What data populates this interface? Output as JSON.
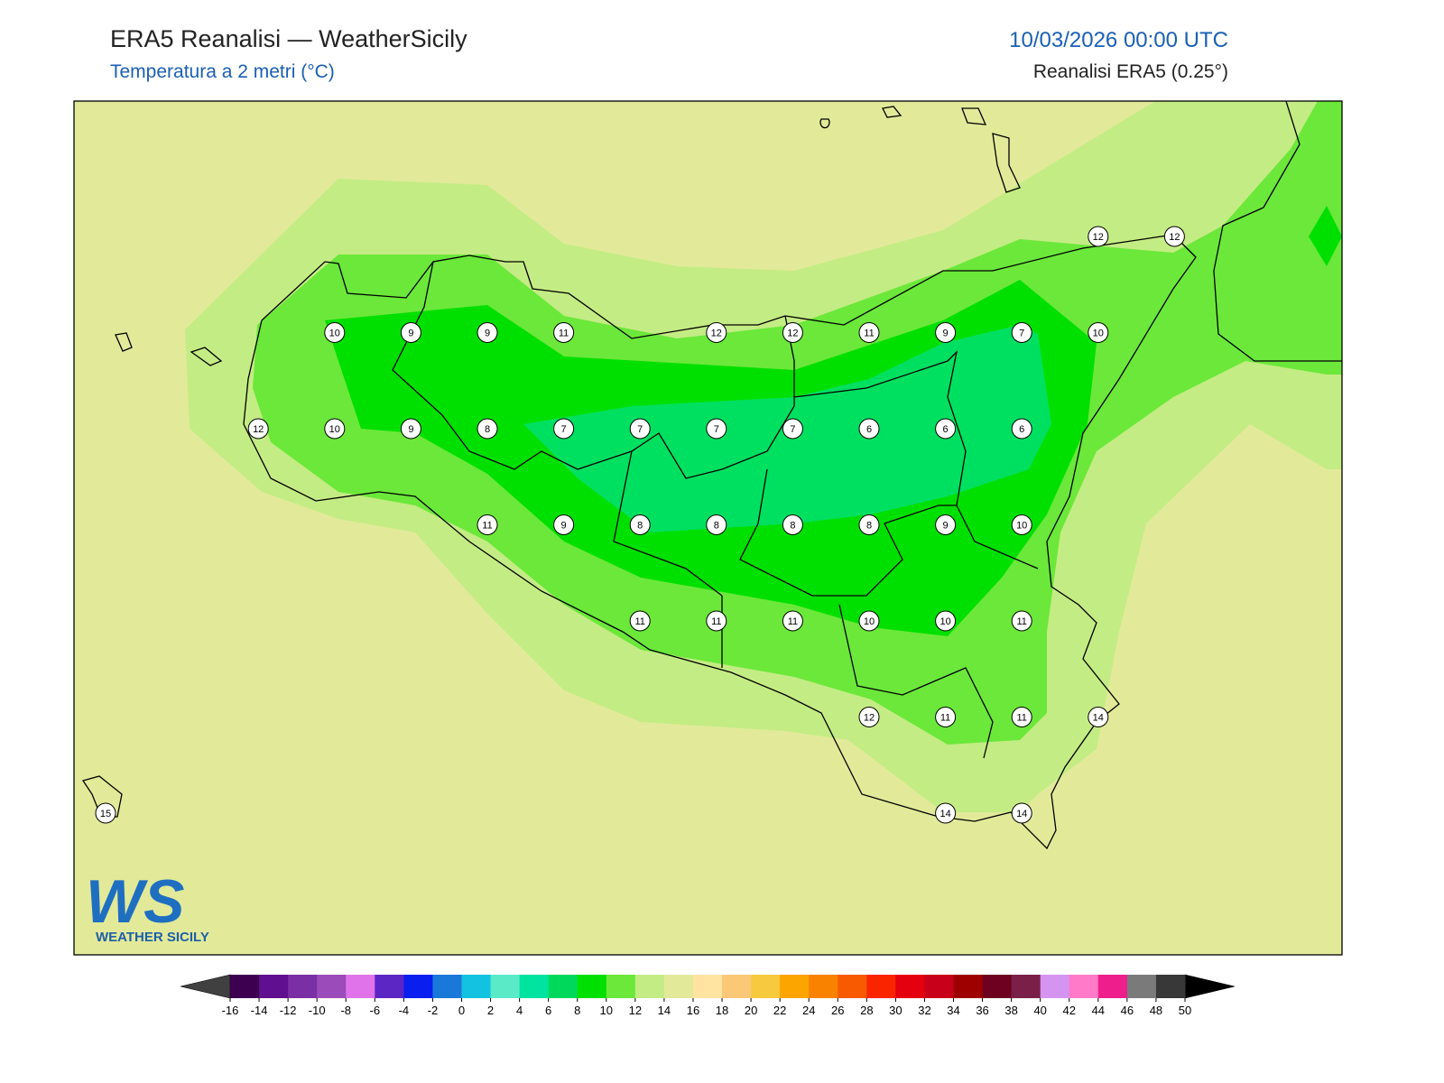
{
  "header": {
    "title": "ERA5 Reanalisi — WeatherSicily",
    "subtitle": "Temperatura a 2 metri (°C)",
    "datetime": "10/03/2026 00:00 UTC",
    "source": "Reanalisi ERA5 (0.25°)"
  },
  "map": {
    "stations": [
      [
        null,
        null,
        null,
        null,
        null,
        null,
        null,
        null,
        null,
        null,
        null,
        null,
        null,
        12,
        12
      ],
      [
        null,
        null,
        null,
        10,
        9,
        9,
        11,
        null,
        12,
        12,
        11,
        9,
        7,
        10,
        null
      ],
      [
        null,
        null,
        12,
        10,
        9,
        8,
        7,
        7,
        7,
        7,
        6,
        6,
        6,
        null,
        null
      ],
      [
        null,
        null,
        null,
        null,
        null,
        11,
        9,
        8,
        8,
        8,
        8,
        9,
        10,
        null,
        null
      ],
      [
        null,
        null,
        null,
        null,
        null,
        null,
        null,
        11,
        11,
        11,
        10,
        10,
        11,
        null,
        null
      ],
      [
        null,
        null,
        null,
        null,
        null,
        null,
        null,
        null,
        null,
        null,
        12,
        11,
        11,
        14,
        null
      ],
      [
        15,
        null,
        null,
        null,
        null,
        null,
        null,
        null,
        null,
        null,
        null,
        14,
        14,
        null,
        null
      ]
    ]
  },
  "logo": {
    "initials": "WS",
    "name": "WEATHER SICILY"
  },
  "colorbar": {
    "ticks": [
      -16,
      -14,
      -12,
      -10,
      -8,
      -6,
      -4,
      -2,
      0,
      2,
      4,
      6,
      8,
      10,
      12,
      14,
      16,
      18,
      20,
      22,
      24,
      26,
      28,
      30,
      32,
      34,
      36,
      38,
      40,
      42,
      44,
      46,
      48,
      50
    ],
    "colors": [
      "#3d0050",
      "#5f0f8f",
      "#7a2fa5",
      "#9b4bba",
      "#e072ea",
      "#5c26c4",
      "#0b1ef0",
      "#1a78d8",
      "#12c2e0",
      "#5aeac8",
      "#00e4a0",
      "#00d85c",
      "#00e000",
      "#6be83a",
      "#c4ec84",
      "#e2ea9a",
      "#ffe3a0",
      "#fbc878",
      "#f7c93e",
      "#fca400",
      "#f98200",
      "#f75a00",
      "#fa2400",
      "#e4000e",
      "#c8001a",
      "#9e0000",
      "#6e0020",
      "#7a1f48",
      "#d494f0",
      "#ff7ac8",
      "#ee1e8c",
      "#7a7a7a",
      "#383838"
    ],
    "under_color": "#404040",
    "over_color": "#000000"
  }
}
